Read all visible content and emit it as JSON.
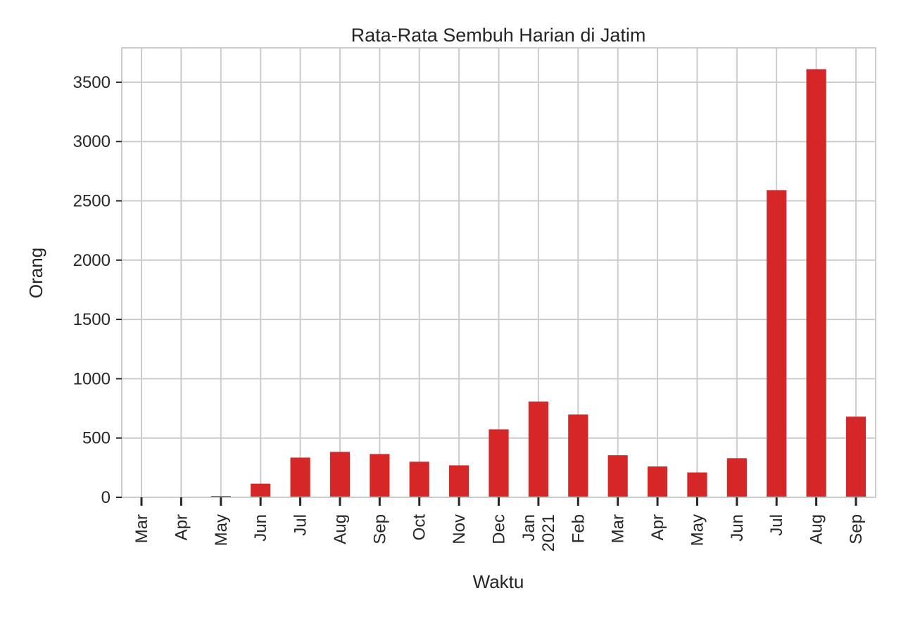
{
  "chart_data": {
    "type": "bar",
    "title": "Rata-Rata Sembuh Harian di Jatim",
    "xlabel": "Waktu",
    "ylabel": "Orang",
    "categories": [
      "Mar",
      "Apr",
      "May",
      "Jun",
      "Jul",
      "Aug",
      "Sep",
      "Oct",
      "Nov",
      "Dec",
      "Jan\n2021",
      "Feb",
      "Mar",
      "Apr",
      "May",
      "Jun",
      "Jul",
      "Aug",
      "Sep"
    ],
    "values": [
      1,
      3,
      12,
      115,
      335,
      383,
      365,
      300,
      270,
      573,
      808,
      698,
      355,
      260,
      210,
      330,
      2590,
      3610,
      680
    ],
    "yticks": [
      0,
      500,
      1000,
      1500,
      2000,
      2500,
      3000,
      3500
    ],
    "ylim": [
      0,
      3790
    ],
    "grid": true,
    "legend": "none",
    "bar_color": "#d62728"
  }
}
